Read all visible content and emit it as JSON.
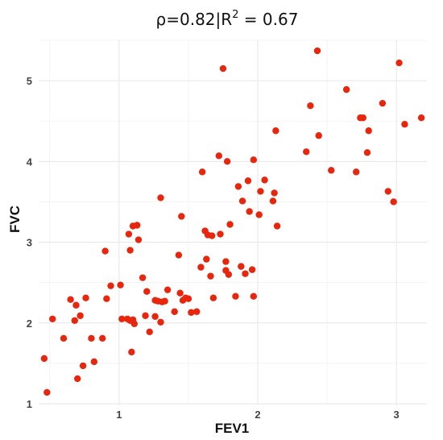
{
  "chart_data": {
    "type": "scatter",
    "title_main": "ρ=0.82|R",
    "title_sup": "2",
    "title_rest": " = 0.67",
    "xlabel": "FEV1",
    "ylabel": "FVC",
    "xlim": [
      0.42,
      3.22
    ],
    "ylim": [
      0.98,
      5.5
    ],
    "xticks": [
      "1",
      "2",
      "3"
    ],
    "yticks": [
      "1",
      "2",
      "3",
      "4",
      "5"
    ],
    "grid": true,
    "point_color": "#e8260e",
    "x": [
      0.46,
      0.48,
      0.52,
      0.6,
      0.65,
      0.68,
      0.69,
      0.7,
      0.72,
      0.74,
      0.76,
      0.8,
      0.82,
      0.88,
      0.9,
      0.91,
      0.94,
      1.01,
      1.06,
      1.07,
      1.08,
      1.08,
      1.09,
      1.1,
      1.1,
      1.11,
      1.13,
      1.14,
      1.17,
      1.19,
      1.2,
      1.22,
      1.26,
      1.26,
      1.28,
      1.3,
      1.3,
      1.31,
      1.33,
      1.35,
      1.4,
      1.43,
      1.44,
      1.45,
      1.46,
      1.48,
      1.5,
      1.52,
      1.59,
      1.6,
      1.62,
      1.63,
      1.64,
      1.66,
      1.67,
      1.68,
      1.72,
      1.73,
      1.75,
      1.77,
      1.77,
      1.78,
      1.79,
      1.8,
      1.84,
      1.86,
      1.88,
      1.89,
      1.91,
      1.93,
      1.94,
      1.96,
      1.97,
      1.97,
      2.01,
      2.02,
      2.05,
      2.11,
      2.12,
      2.13,
      2.14,
      2.35,
      2.38,
      2.43,
      2.44,
      2.53,
      2.64,
      2.71,
      2.74,
      2.76,
      2.79,
      2.8,
      2.9,
      2.94,
      2.98,
      3.02,
      3.06,
      3.18,
      1.02,
      1.56
    ],
    "y": [
      1.56,
      1.14,
      2.05,
      1.81,
      2.29,
      2.03,
      2.22,
      1.31,
      2.09,
      1.47,
      2.31,
      1.81,
      1.52,
      1.81,
      2.89,
      2.3,
      2.46,
      2.47,
      2.05,
      3.1,
      2.9,
      2.03,
      1.64,
      2.04,
      3.2,
      1.99,
      3.21,
      3.03,
      2.56,
      2.09,
      2.39,
      1.89,
      2.28,
      2.08,
      2.27,
      3.55,
      2.01,
      2.26,
      2.27,
      2.41,
      2.14,
      2.84,
      2.37,
      3.32,
      2.28,
      2.31,
      2.3,
      2.13,
      2.69,
      3.87,
      3.14,
      2.79,
      3.09,
      2.58,
      3.08,
      2.31,
      4.07,
      3.1,
      5.15,
      2.65,
      2.76,
      4.0,
      2.6,
      3.22,
      2.33,
      3.69,
      2.7,
      3.51,
      2.61,
      3.76,
      3.38,
      2.66,
      4.02,
      2.33,
      3.34,
      3.63,
      3.77,
      3.51,
      3.61,
      4.38,
      3.2,
      4.12,
      4.69,
      5.37,
      4.32,
      3.89,
      4.89,
      3.87,
      4.54,
      4.54,
      4.11,
      4.38,
      4.72,
      3.63,
      3.5,
      5.22,
      4.46,
      4.54,
      2.05,
      2.14
    ]
  }
}
